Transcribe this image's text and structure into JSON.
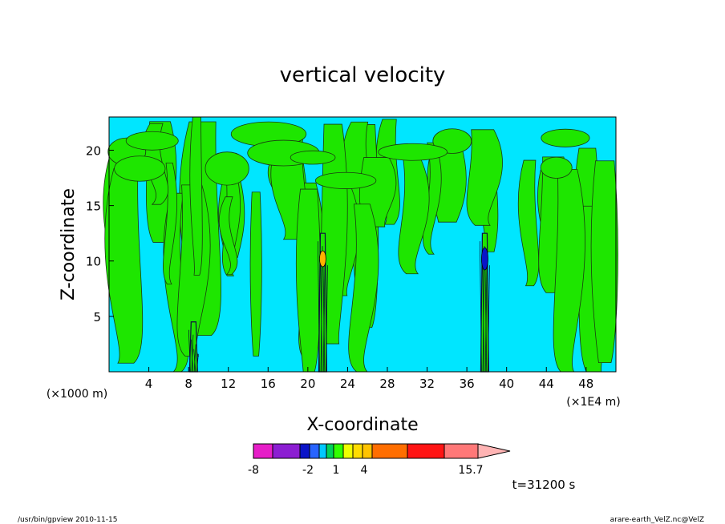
{
  "chart_data": {
    "type": "heatmap",
    "title": "vertical velocity",
    "xlabel": "X-coordinate",
    "ylabel": "Z-coordinate",
    "xunit_left": "(×1000 m)",
    "xunit_right": "(×1E4 m)",
    "xlim": [
      0,
      51
    ],
    "ylim": [
      0,
      23
    ],
    "xticks": [
      4,
      8,
      12,
      16,
      20,
      24,
      28,
      32,
      36,
      40,
      44,
      48
    ],
    "yticks": [
      5,
      10,
      15,
      20
    ],
    "grid": false,
    "colorbar": {
      "levels": [
        "-8",
        "-2",
        "1",
        "4",
        "15.7"
      ],
      "colors": [
        "#e61ec8",
        "#8c1ed2",
        "#0a14c8",
        "#2864ff",
        "#00c8ff",
        "#00d25a",
        "#32ff00",
        "#f0ff00",
        "#ffdc00",
        "#ffc300",
        "#ff6e00",
        "#ff1414",
        "#ff7878",
        "#ffb4b4"
      ]
    },
    "background_color": "#00e6ff",
    "positive_color": "#1ee600",
    "updraft_columns": [
      {
        "x": 8.5,
        "z_top": 4.5,
        "note": "weak narrow column"
      },
      {
        "x": 21.5,
        "z_top": 12.5,
        "peak": "orange core near z=10"
      },
      {
        "x": 37.8,
        "z_top": 12.5,
        "peak": "dark blue core near z=10"
      }
    ]
  },
  "annotations": {
    "time": "t=31200 s",
    "footer_left": "/usr/bin/gpview   2010-11-15",
    "footer_right": "arare-earth_VelZ.nc@VelZ"
  }
}
